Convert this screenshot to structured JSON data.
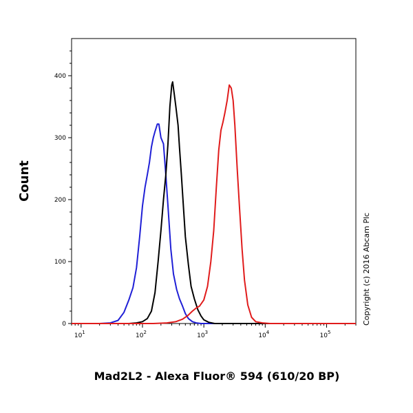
{
  "chart_data": {
    "type": "line",
    "title": "",
    "xlabel": "Mad2L2 - Alexa Fluor® 594 (610/20 BP)",
    "ylabel": "Count",
    "x_scale": "log",
    "xlim": [
      7,
      300000
    ],
    "ylim": [
      0,
      460
    ],
    "grid": false,
    "legend": "none",
    "y_ticks": [
      0,
      100,
      200,
      300,
      400
    ],
    "x_ticks": [
      {
        "value": 10,
        "base": "10",
        "exp": "1"
      },
      {
        "value": 100,
        "base": "10",
        "exp": "2"
      },
      {
        "value": 1000,
        "base": "10",
        "exp": "3"
      },
      {
        "value": 10000,
        "base": "10",
        "exp": "4"
      },
      {
        "value": 100000,
        "base": "10",
        "exp": "5"
      }
    ],
    "series": [
      {
        "color": "#1f1fd6",
        "points": [
          [
            7,
            0
          ],
          [
            20,
            0
          ],
          [
            30,
            1
          ],
          [
            40,
            5
          ],
          [
            50,
            18
          ],
          [
            60,
            38
          ],
          [
            70,
            58
          ],
          [
            80,
            90
          ],
          [
            90,
            140
          ],
          [
            100,
            190
          ],
          [
            110,
            220
          ],
          [
            120,
            240
          ],
          [
            130,
            260
          ],
          [
            140,
            285
          ],
          [
            150,
            300
          ],
          [
            160,
            310
          ],
          [
            175,
            322
          ],
          [
            185,
            322
          ],
          [
            200,
            300
          ],
          [
            220,
            290
          ],
          [
            240,
            240
          ],
          [
            260,
            190
          ],
          [
            290,
            120
          ],
          [
            320,
            80
          ],
          [
            360,
            55
          ],
          [
            400,
            40
          ],
          [
            450,
            28
          ],
          [
            500,
            16
          ],
          [
            560,
            8
          ],
          [
            650,
            3
          ],
          [
            750,
            1
          ],
          [
            900,
            0
          ],
          [
            300000,
            0
          ]
        ]
      },
      {
        "color": "#000000",
        "points": [
          [
            7,
            0
          ],
          [
            60,
            0
          ],
          [
            80,
            1
          ],
          [
            100,
            3
          ],
          [
            120,
            8
          ],
          [
            140,
            20
          ],
          [
            160,
            50
          ],
          [
            180,
            100
          ],
          [
            200,
            150
          ],
          [
            220,
            200
          ],
          [
            240,
            240
          ],
          [
            260,
            290
          ],
          [
            280,
            350
          ],
          [
            300,
            385
          ],
          [
            310,
            390
          ],
          [
            330,
            370
          ],
          [
            350,
            350
          ],
          [
            380,
            320
          ],
          [
            400,
            285
          ],
          [
            430,
            240
          ],
          [
            460,
            195
          ],
          [
            500,
            140
          ],
          [
            560,
            95
          ],
          [
            620,
            60
          ],
          [
            700,
            40
          ],
          [
            800,
            22
          ],
          [
            900,
            12
          ],
          [
            1000,
            6
          ],
          [
            1200,
            2
          ],
          [
            1500,
            0
          ],
          [
            300000,
            0
          ]
        ]
      },
      {
        "color": "#e01b1b",
        "points": [
          [
            7,
            0
          ],
          [
            150,
            0
          ],
          [
            250,
            1
          ],
          [
            350,
            3
          ],
          [
            450,
            7
          ],
          [
            550,
            13
          ],
          [
            650,
            20
          ],
          [
            750,
            25
          ],
          [
            850,
            28
          ],
          [
            1000,
            38
          ],
          [
            1150,
            60
          ],
          [
            1300,
            100
          ],
          [
            1450,
            150
          ],
          [
            1600,
            220
          ],
          [
            1750,
            280
          ],
          [
            1900,
            312
          ],
          [
            2050,
            325
          ],
          [
            2200,
            340
          ],
          [
            2400,
            360
          ],
          [
            2600,
            385
          ],
          [
            2800,
            380
          ],
          [
            3000,
            360
          ],
          [
            3200,
            320
          ],
          [
            3500,
            250
          ],
          [
            3800,
            190
          ],
          [
            4200,
            120
          ],
          [
            4600,
            70
          ],
          [
            5200,
            30
          ],
          [
            6000,
            10
          ],
          [
            7000,
            3
          ],
          [
            9000,
            1
          ],
          [
            12000,
            0
          ],
          [
            300000,
            0
          ]
        ]
      }
    ]
  },
  "copyright": "Copyright (c) 2016 Abcam Plc"
}
